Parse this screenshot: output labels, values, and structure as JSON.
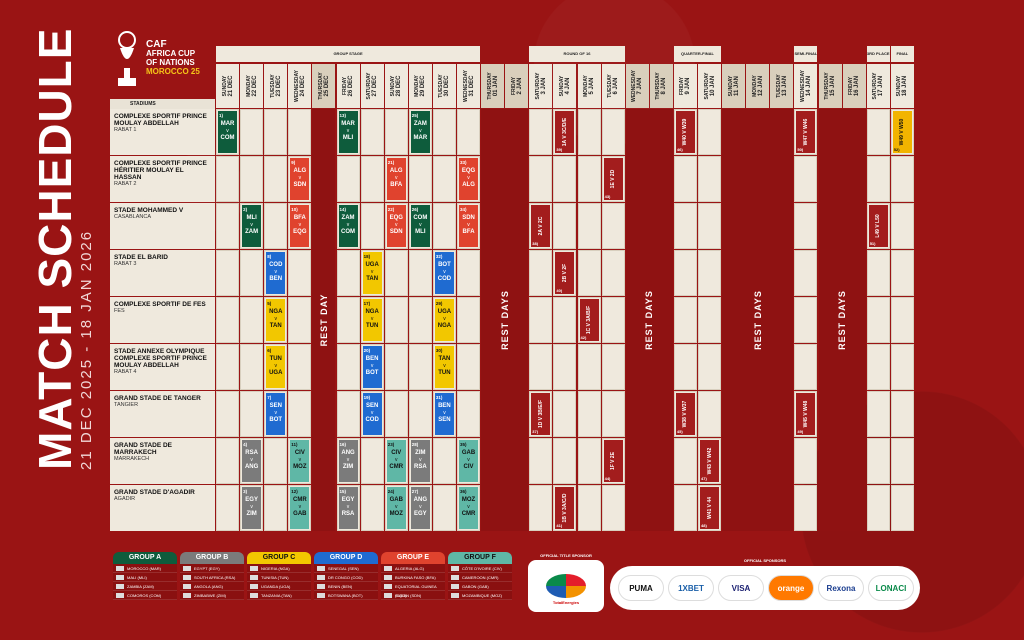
{
  "title": {
    "main": "MATCH SCHEDULE",
    "dates": "21 DEC 2025 - 18 JAN 2026"
  },
  "logo": {
    "caf": "CAF",
    "line1": "AFRICA CUP",
    "line2": "OF NATIONS",
    "line3": "MOROCCO 25"
  },
  "stages": {
    "group": "GROUP STAGE",
    "r16": "ROUND OF 16",
    "qf": "QUARTER-FINAL",
    "sf": "SEMI-FINAL",
    "third": "3RD PLACE",
    "final": "FINAL"
  },
  "stadiums_header": "STADIUMS",
  "days": [
    {
      "d": "SUNDAY",
      "n": "21 DEC"
    },
    {
      "d": "MONDAY",
      "n": "22 DEC"
    },
    {
      "d": "TUESDAY",
      "n": "23 DEC"
    },
    {
      "d": "WEDNESDAY",
      "n": "24 DEC"
    },
    {
      "d": "THURSDAY",
      "n": "25 DEC"
    },
    {
      "d": "FRIDAY",
      "n": "26 DEC"
    },
    {
      "d": "SATURDAY",
      "n": "27 DEC"
    },
    {
      "d": "SUNDAY",
      "n": "28 DEC"
    },
    {
      "d": "MONDAY",
      "n": "29 DEC"
    },
    {
      "d": "TUESDAY",
      "n": "30 DEC"
    },
    {
      "d": "WEDNESDAY",
      "n": "31 DEC"
    },
    {
      "d": "THURSDAY",
      "n": "01 JAN"
    },
    {
      "d": "FRIDAY",
      "n": "2 JAN"
    },
    {
      "d": "SATURDAY",
      "n": "3 JAN"
    },
    {
      "d": "SUNDAY",
      "n": "4 JAN"
    },
    {
      "d": "MONDAY",
      "n": "5 JAN"
    },
    {
      "d": "TUESDAY",
      "n": "6 JAN"
    },
    {
      "d": "WEDNESDAY",
      "n": "7 JAN"
    },
    {
      "d": "THURSDAY",
      "n": "8 JAN"
    },
    {
      "d": "FRIDAY",
      "n": "9 JAN"
    },
    {
      "d": "SATURDAY",
      "n": "10 JAN"
    },
    {
      "d": "SUNDAY",
      "n": "11 JAN"
    },
    {
      "d": "MONDAY",
      "n": "12 JAN"
    },
    {
      "d": "TUESDAY",
      "n": "13 JAN"
    },
    {
      "d": "WEDNESDAY",
      "n": "14 JAN"
    },
    {
      "d": "THURSDAY",
      "n": "15 JAN"
    },
    {
      "d": "FRIDAY",
      "n": "16 JAN"
    },
    {
      "d": "SATURDAY",
      "n": "17 JAN"
    },
    {
      "d": "SUNDAY",
      "n": "18 JAN"
    }
  ],
  "stadiums": [
    {
      "name": "COMPLEXE SPORTIF PRINCE MOULAY ABDELLAH",
      "city": "RABAT 1"
    },
    {
      "name": "COMPLEXE SPORTIF PRINCE HÉRITIER MOULAY EL HASSAN",
      "city": "RABAT 2"
    },
    {
      "name": "STADE MOHAMMED V",
      "city": "CASABLANCA"
    },
    {
      "name": "STADE EL BARID",
      "city": "RABAT 3"
    },
    {
      "name": "COMPLEXE SPORTIF DE FES",
      "city": "FES"
    },
    {
      "name": "STADE ANNEXE OLYMPIQUE COMPLEXE SPORTIF PRINCE MOULAY ABDELLAH",
      "city": "RABAT 4"
    },
    {
      "name": "GRAND STADE DE TANGER",
      "city": "TANGIER"
    },
    {
      "name": "GRAND STADE DE MARRAKECH",
      "city": "MARRAKECH"
    },
    {
      "name": "GRAND STADE D'AGADIR",
      "city": "AGADIR"
    }
  ],
  "rest_days": "REST DAYS",
  "rest_day": "REST DAY",
  "group_matches": [
    {
      "n": "1",
      "a": "MAR",
      "b": "COM",
      "g": 1,
      "s": 0,
      "d": 0
    },
    {
      "n": "13",
      "a": "MAR",
      "b": "MLI",
      "g": 1,
      "s": 0,
      "d": 5
    },
    {
      "n": "25",
      "a": "ZAM",
      "b": "MAR",
      "g": 1,
      "s": 0,
      "d": 8
    },
    {
      "n": "9",
      "a": "ALG",
      "b": "SDN",
      "g": 5,
      "s": 1,
      "d": 3
    },
    {
      "n": "21",
      "a": "ALG",
      "b": "BFA",
      "g": 5,
      "s": 1,
      "d": 7
    },
    {
      "n": "33",
      "a": "EQG",
      "b": "ALG",
      "g": 5,
      "s": 1,
      "d": 10
    },
    {
      "n": "2",
      "a": "MLI",
      "b": "ZAM",
      "g": 1,
      "s": 2,
      "d": 1
    },
    {
      "n": "10",
      "a": "BFA",
      "b": "EQG",
      "g": 5,
      "s": 2,
      "d": 3
    },
    {
      "n": "14",
      "a": "ZAM",
      "b": "COM",
      "g": 1,
      "s": 2,
      "d": 5
    },
    {
      "n": "22",
      "a": "EQG",
      "b": "SDN",
      "g": 5,
      "s": 2,
      "d": 7
    },
    {
      "n": "26",
      "a": "COM",
      "b": "MLI",
      "g": 1,
      "s": 2,
      "d": 8
    },
    {
      "n": "34",
      "a": "SDN",
      "b": "BFA",
      "g": 5,
      "s": 2,
      "d": 10
    },
    {
      "n": "8",
      "a": "COD",
      "b": "BEN",
      "g": 4,
      "s": 3,
      "d": 2
    },
    {
      "n": "18",
      "a": "UGA",
      "b": "TAN",
      "g": 3,
      "s": 3,
      "d": 6
    },
    {
      "n": "32",
      "a": "BOT",
      "b": "COD",
      "g": 4,
      "s": 3,
      "d": 9
    },
    {
      "n": "5",
      "a": "NGA",
      "b": "TAN",
      "g": 3,
      "s": 4,
      "d": 2
    },
    {
      "n": "17",
      "a": "NGA",
      "b": "TUN",
      "g": 3,
      "s": 4,
      "d": 6
    },
    {
      "n": "29",
      "a": "UGA",
      "b": "NGA",
      "g": 3,
      "s": 4,
      "d": 9
    },
    {
      "n": "6",
      "a": "TUN",
      "b": "UGA",
      "g": 3,
      "s": 5,
      "d": 2
    },
    {
      "n": "20",
      "a": "BEN",
      "b": "BOT",
      "g": 4,
      "s": 5,
      "d": 6
    },
    {
      "n": "30",
      "a": "TAN",
      "b": "TUN",
      "g": 3,
      "s": 5,
      "d": 9
    },
    {
      "n": "7",
      "a": "SEN",
      "b": "BOT",
      "g": 4,
      "s": 6,
      "d": 2
    },
    {
      "n": "19",
      "a": "SEN",
      "b": "COD",
      "g": 4,
      "s": 6,
      "d": 6
    },
    {
      "n": "31",
      "a": "BEN",
      "b": "SEN",
      "g": 4,
      "s": 6,
      "d": 9
    },
    {
      "n": "4",
      "a": "RSA",
      "b": "ANG",
      "g": 2,
      "s": 7,
      "d": 1
    },
    {
      "n": "11",
      "a": "CIV",
      "b": "MOZ",
      "g": 6,
      "s": 7,
      "d": 3
    },
    {
      "n": "16",
      "a": "ANG",
      "b": "ZIM",
      "g": 2,
      "s": 7,
      "d": 5
    },
    {
      "n": "23",
      "a": "CIV",
      "b": "CMR",
      "g": 6,
      "s": 7,
      "d": 7
    },
    {
      "n": "28",
      "a": "ZIM",
      "b": "RSA",
      "g": 2,
      "s": 7,
      "d": 8
    },
    {
      "n": "35",
      "a": "GAB",
      "b": "CIV",
      "g": 6,
      "s": 7,
      "d": 10
    },
    {
      "n": "3",
      "a": "EGY",
      "b": "ZIM",
      "g": 2,
      "s": 8,
      "d": 1
    },
    {
      "n": "12",
      "a": "CMR",
      "b": "GAB",
      "g": 6,
      "s": 8,
      "d": 3
    },
    {
      "n": "15",
      "a": "EGY",
      "b": "RSA",
      "g": 2,
      "s": 8,
      "d": 5
    },
    {
      "n": "24",
      "a": "GAB",
      "b": "MOZ",
      "g": 6,
      "s": 8,
      "d": 7
    },
    {
      "n": "27",
      "a": "ANG",
      "b": "EGY",
      "g": 2,
      "s": 8,
      "d": 8
    },
    {
      "n": "36",
      "a": "MOZ",
      "b": "CMR",
      "g": 6,
      "s": 8,
      "d": 10
    }
  ],
  "ko_matches": [
    {
      "n": "39",
      "t": "1A V 3C/D/E",
      "s": 0,
      "d": 14
    },
    {
      "n": "46",
      "t": "W40 V W39",
      "s": 0,
      "d": 19
    },
    {
      "n": "50",
      "t": "W47 V W46",
      "s": 0,
      "d": 24
    },
    {
      "n": "52",
      "t": "W49 V W50",
      "s": 0,
      "d": 28,
      "gold": true
    },
    {
      "n": "43",
      "t": "1E V 2D",
      "s": 1,
      "d": 16
    },
    {
      "n": "38",
      "t": "2A V 2C",
      "s": 2,
      "d": 13
    },
    {
      "n": "51",
      "t": "L49 V L50",
      "s": 2,
      "d": 27
    },
    {
      "n": "40",
      "t": "2B V 2F",
      "s": 3,
      "d": 14
    },
    {
      "n": "42",
      "t": "1C V 3A/B/F",
      "s": 4,
      "d": 15
    },
    {
      "n": "37",
      "t": "1D V 3B/E/F",
      "s": 6,
      "d": 13
    },
    {
      "n": "45",
      "t": "W38 V W37",
      "s": 6,
      "d": 19
    },
    {
      "n": "49",
      "t": "W45 V W48",
      "s": 6,
      "d": 24
    },
    {
      "n": "44",
      "t": "1F V 2E",
      "s": 7,
      "d": 16
    },
    {
      "n": "47",
      "t": "W43 V W42",
      "s": 7,
      "d": 20
    },
    {
      "n": "41",
      "t": "1B V 3A/C/D",
      "s": 8,
      "d": 14
    },
    {
      "n": "48",
      "t": "W41 V 44",
      "s": 8,
      "d": 20
    }
  ],
  "groups": [
    {
      "name": "GROUP A",
      "color": "#0e5c3c",
      "fg": "#ffffff",
      "teams": [
        "MOROCCO (MAR)",
        "MALI (MLI)",
        "ZAMBIA (ZAM)",
        "COMOROS (COM)"
      ]
    },
    {
      "name": "GROUP B",
      "color": "#7b7b7b",
      "fg": "#ffffff",
      "teams": [
        "EGYPT (EGY)",
        "SOUTH AFRICA (RSA)",
        "ANGOLA (ANG)",
        "ZIMBABWE (ZIM)"
      ]
    },
    {
      "name": "GROUP C",
      "color": "#f2c700",
      "fg": "#111111",
      "teams": [
        "NIGERIA (NGA)",
        "TUNISIA (TUN)",
        "UGANDA (UGA)",
        "TANZANIA (TAN)"
      ]
    },
    {
      "name": "GROUP D",
      "color": "#1f6bd1",
      "fg": "#ffffff",
      "teams": [
        "SENEGAL (SEN)",
        "DR CONGO (COD)",
        "BENIN (BEN)",
        "BOTSWANA (BOT)"
      ]
    },
    {
      "name": "GROUP E",
      "color": "#e0432e",
      "fg": "#ffffff",
      "teams": [
        "ALGERIA (ALG)",
        "BURKINA FASO (BFA)",
        "EQUATORIAL GUINEA (EQG)",
        "SUDAN (SDN)"
      ]
    },
    {
      "name": "GROUP F",
      "color": "#5fb7a6",
      "fg": "#111111",
      "teams": [
        "CÔTE D'IVOIRE (CIV)",
        "CAMEROON (CMR)",
        "GABON (GAB)",
        "MOZAMBIQUE (MOZ)"
      ]
    }
  ],
  "sponsors": {
    "title_label": "OFFICIAL TITLE SPONSOR",
    "title_name": "TotalEnergies",
    "official_label": "OFFICIAL SPONSORS",
    "list": [
      "PUMA",
      "1XBET",
      "VISA",
      "orange",
      "Rexona",
      "LONACI"
    ]
  }
}
